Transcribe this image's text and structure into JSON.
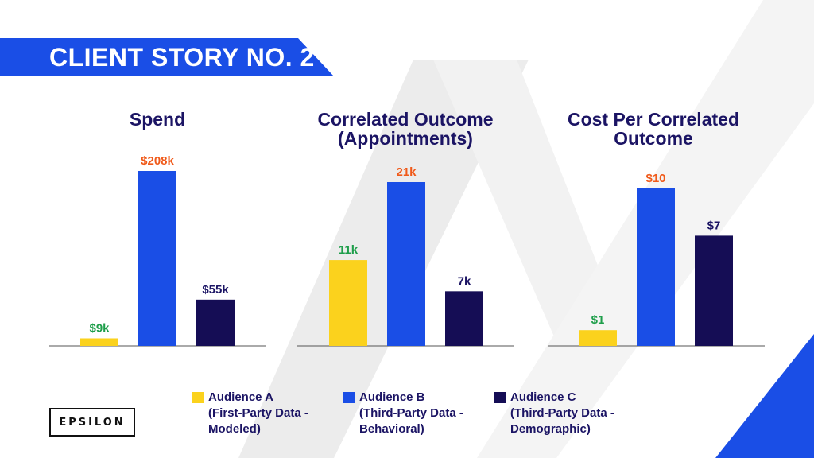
{
  "header": {
    "title": "CLIENT STORY NO. 2"
  },
  "colors": {
    "audience_a": "#fbd21d",
    "audience_b": "#1a4ee6",
    "audience_c": "#150d55",
    "label_green": "#1e9e4a",
    "label_orange": "#f05a1a",
    "label_navy": "#1b1464",
    "title_navy": "#1b1464"
  },
  "chart_data": [
    {
      "type": "bar",
      "title": "Spend",
      "categories": [
        "Audience A",
        "Audience B",
        "Audience C"
      ],
      "values": [
        9,
        208,
        55
      ],
      "data_labels": [
        "$9k",
        "$208k",
        "$55k"
      ],
      "label_colors": [
        "label_green",
        "label_orange",
        "label_navy"
      ],
      "ylim": [
        0,
        208
      ]
    },
    {
      "type": "bar",
      "title": "Correlated Outcome\n(Appointments)",
      "categories": [
        "Audience A",
        "Audience B",
        "Audience C"
      ],
      "values": [
        11,
        21,
        7
      ],
      "data_labels": [
        "11k",
        "21k",
        "7k"
      ],
      "label_colors": [
        "label_green",
        "label_orange",
        "label_navy"
      ],
      "ylim": [
        0,
        21
      ]
    },
    {
      "type": "bar",
      "title": "Cost Per Correlated\nOutcome",
      "categories": [
        "Audience A",
        "Audience B",
        "Audience C"
      ],
      "values": [
        1,
        10,
        7
      ],
      "data_labels": [
        "$1",
        "$10",
        "$7"
      ],
      "label_colors": [
        "label_green",
        "label_orange",
        "label_navy"
      ],
      "ylim": [
        0,
        10
      ]
    }
  ],
  "legend": [
    {
      "name": "Audience A",
      "sub1": "(First-Party Data -",
      "sub2": "Modeled)",
      "color_key": "audience_a"
    },
    {
      "name": "Audience B",
      "sub1": "(Third-Party Data -",
      "sub2": "Behavioral)",
      "color_key": "audience_b"
    },
    {
      "name": "Audience C",
      "sub1": "(Third-Party Data -",
      "sub2": "Demographic)",
      "color_key": "audience_c"
    }
  ],
  "logo": {
    "text": "EPSILON"
  }
}
